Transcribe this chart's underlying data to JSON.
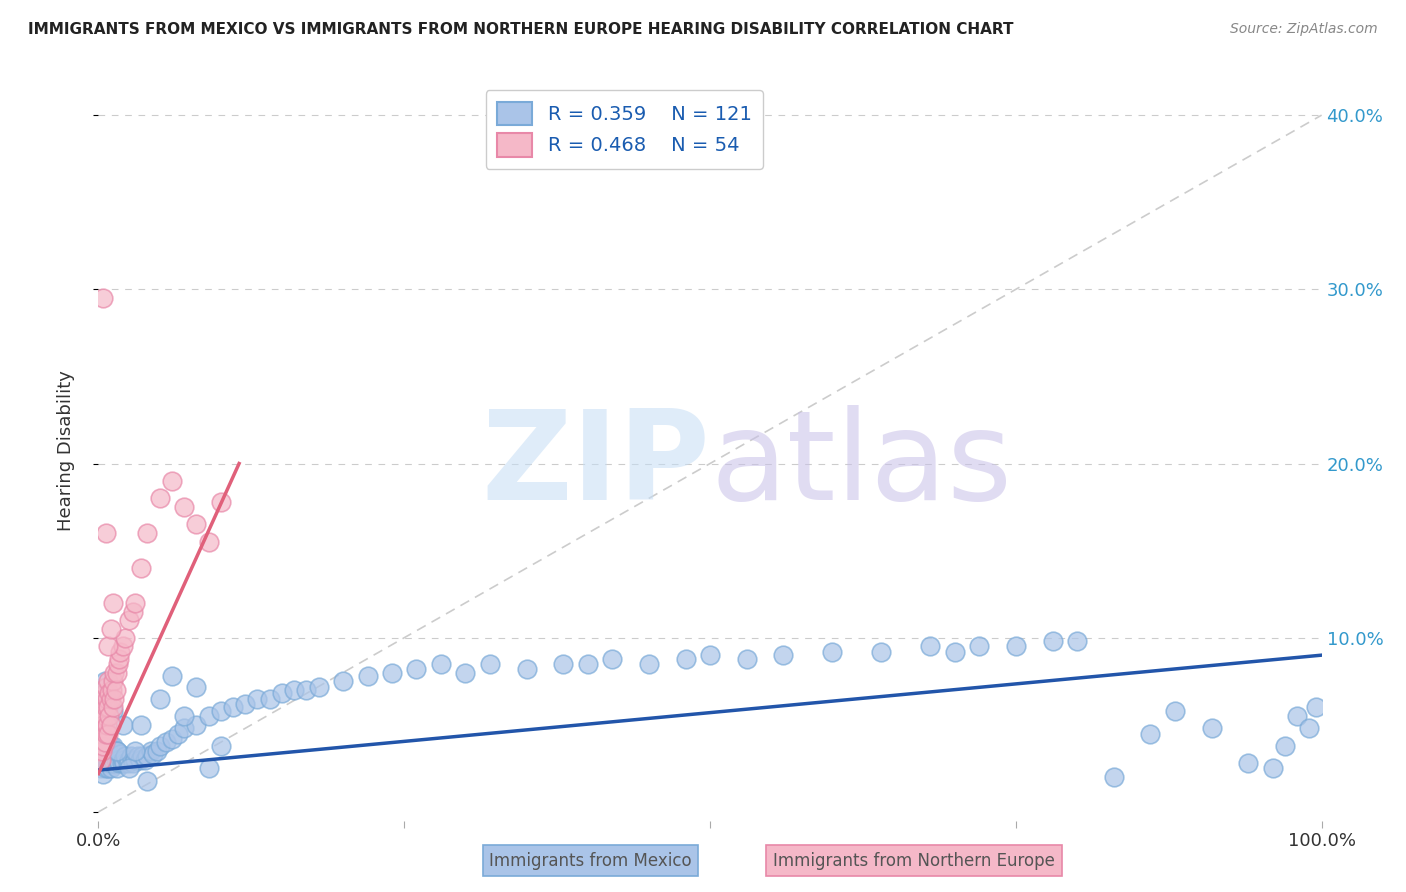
{
  "title": "IMMIGRANTS FROM MEXICO VS IMMIGRANTS FROM NORTHERN EUROPE HEARING DISABILITY CORRELATION CHART",
  "source": "Source: ZipAtlas.com",
  "ylabel": "Hearing Disability",
  "series1_label": "Immigrants from Mexico",
  "series1_color": "#aac4e8",
  "series1_edge": "#7aaad8",
  "series1_line_color": "#2255aa",
  "series1_R": "0.359",
  "series1_N": "121",
  "series2_label": "Immigrants from Northern Europe",
  "series2_color": "#f5b8c8",
  "series2_edge": "#e888a8",
  "series2_line_color": "#e0607a",
  "series2_R": "0.468",
  "series2_N": "54",
  "legend_text_color": "#1a5cb0",
  "background_color": "#ffffff",
  "grid_color": "#cccccc",
  "diag_color": "#cccccc",
  "tick_color": "#3399cc",
  "xlim": [
    0.0,
    1.0
  ],
  "ylim": [
    -0.005,
    0.42
  ],
  "yticks": [
    0.0,
    0.1,
    0.2,
    0.3,
    0.4
  ],
  "ytick_labels": [
    "",
    "10.0%",
    "20.0%",
    "30.0%",
    "40.0%"
  ],
  "mexico_x": [
    0.001,
    0.002,
    0.002,
    0.003,
    0.003,
    0.003,
    0.004,
    0.004,
    0.004,
    0.005,
    0.005,
    0.005,
    0.006,
    0.006,
    0.006,
    0.007,
    0.007,
    0.007,
    0.008,
    0.008,
    0.008,
    0.009,
    0.009,
    0.01,
    0.01,
    0.01,
    0.011,
    0.011,
    0.012,
    0.012,
    0.013,
    0.013,
    0.014,
    0.015,
    0.015,
    0.016,
    0.017,
    0.018,
    0.019,
    0.02,
    0.021,
    0.022,
    0.024,
    0.025,
    0.027,
    0.028,
    0.03,
    0.032,
    0.034,
    0.036,
    0.038,
    0.04,
    0.043,
    0.045,
    0.048,
    0.05,
    0.055,
    0.06,
    0.065,
    0.07,
    0.08,
    0.09,
    0.1,
    0.11,
    0.12,
    0.13,
    0.14,
    0.15,
    0.16,
    0.17,
    0.18,
    0.2,
    0.22,
    0.24,
    0.26,
    0.28,
    0.3,
    0.32,
    0.35,
    0.38,
    0.4,
    0.42,
    0.45,
    0.48,
    0.5,
    0.53,
    0.56,
    0.6,
    0.64,
    0.68,
    0.7,
    0.72,
    0.75,
    0.78,
    0.8,
    0.83,
    0.86,
    0.88,
    0.91,
    0.94,
    0.96,
    0.97,
    0.98,
    0.99,
    0.995,
    0.003,
    0.005,
    0.008,
    0.012,
    0.015,
    0.02,
    0.025,
    0.03,
    0.035,
    0.04,
    0.05,
    0.06,
    0.07,
    0.08,
    0.09,
    0.1
  ],
  "mexico_y": [
    0.03,
    0.025,
    0.038,
    0.028,
    0.032,
    0.04,
    0.022,
    0.035,
    0.042,
    0.027,
    0.033,
    0.038,
    0.025,
    0.03,
    0.036,
    0.028,
    0.033,
    0.038,
    0.025,
    0.03,
    0.04,
    0.028,
    0.035,
    0.025,
    0.032,
    0.038,
    0.028,
    0.035,
    0.03,
    0.038,
    0.028,
    0.035,
    0.03,
    0.025,
    0.035,
    0.03,
    0.028,
    0.033,
    0.028,
    0.03,
    0.028,
    0.032,
    0.028,
    0.03,
    0.032,
    0.028,
    0.03,
    0.032,
    0.03,
    0.032,
    0.03,
    0.032,
    0.035,
    0.033,
    0.035,
    0.038,
    0.04,
    0.042,
    0.045,
    0.048,
    0.05,
    0.055,
    0.058,
    0.06,
    0.062,
    0.065,
    0.065,
    0.068,
    0.07,
    0.07,
    0.072,
    0.075,
    0.078,
    0.08,
    0.082,
    0.085,
    0.08,
    0.085,
    0.082,
    0.085,
    0.085,
    0.088,
    0.085,
    0.088,
    0.09,
    0.088,
    0.09,
    0.092,
    0.092,
    0.095,
    0.092,
    0.095,
    0.095,
    0.098,
    0.098,
    0.02,
    0.045,
    0.058,
    0.048,
    0.028,
    0.025,
    0.038,
    0.055,
    0.048,
    0.06,
    0.062,
    0.075,
    0.068,
    0.058,
    0.035,
    0.05,
    0.025,
    0.035,
    0.05,
    0.018,
    0.065,
    0.078,
    0.055,
    0.072,
    0.025,
    0.038
  ],
  "northern_x": [
    0.001,
    0.001,
    0.002,
    0.002,
    0.002,
    0.003,
    0.003,
    0.003,
    0.004,
    0.004,
    0.004,
    0.005,
    0.005,
    0.005,
    0.006,
    0.006,
    0.006,
    0.007,
    0.007,
    0.008,
    0.008,
    0.008,
    0.009,
    0.009,
    0.01,
    0.01,
    0.011,
    0.012,
    0.012,
    0.013,
    0.013,
    0.014,
    0.015,
    0.016,
    0.017,
    0.018,
    0.02,
    0.022,
    0.025,
    0.028,
    0.03,
    0.035,
    0.04,
    0.05,
    0.06,
    0.07,
    0.08,
    0.09,
    0.1,
    0.004,
    0.006,
    0.008,
    0.01,
    0.012
  ],
  "northern_y": [
    0.035,
    0.042,
    0.03,
    0.048,
    0.055,
    0.035,
    0.045,
    0.058,
    0.038,
    0.05,
    0.065,
    0.04,
    0.055,
    0.068,
    0.045,
    0.06,
    0.072,
    0.05,
    0.065,
    0.045,
    0.06,
    0.075,
    0.055,
    0.068,
    0.05,
    0.065,
    0.07,
    0.06,
    0.075,
    0.065,
    0.08,
    0.07,
    0.08,
    0.085,
    0.088,
    0.092,
    0.095,
    0.1,
    0.11,
    0.115,
    0.12,
    0.14,
    0.16,
    0.18,
    0.19,
    0.175,
    0.165,
    0.155,
    0.178,
    0.295,
    0.16,
    0.095,
    0.105,
    0.12
  ]
}
